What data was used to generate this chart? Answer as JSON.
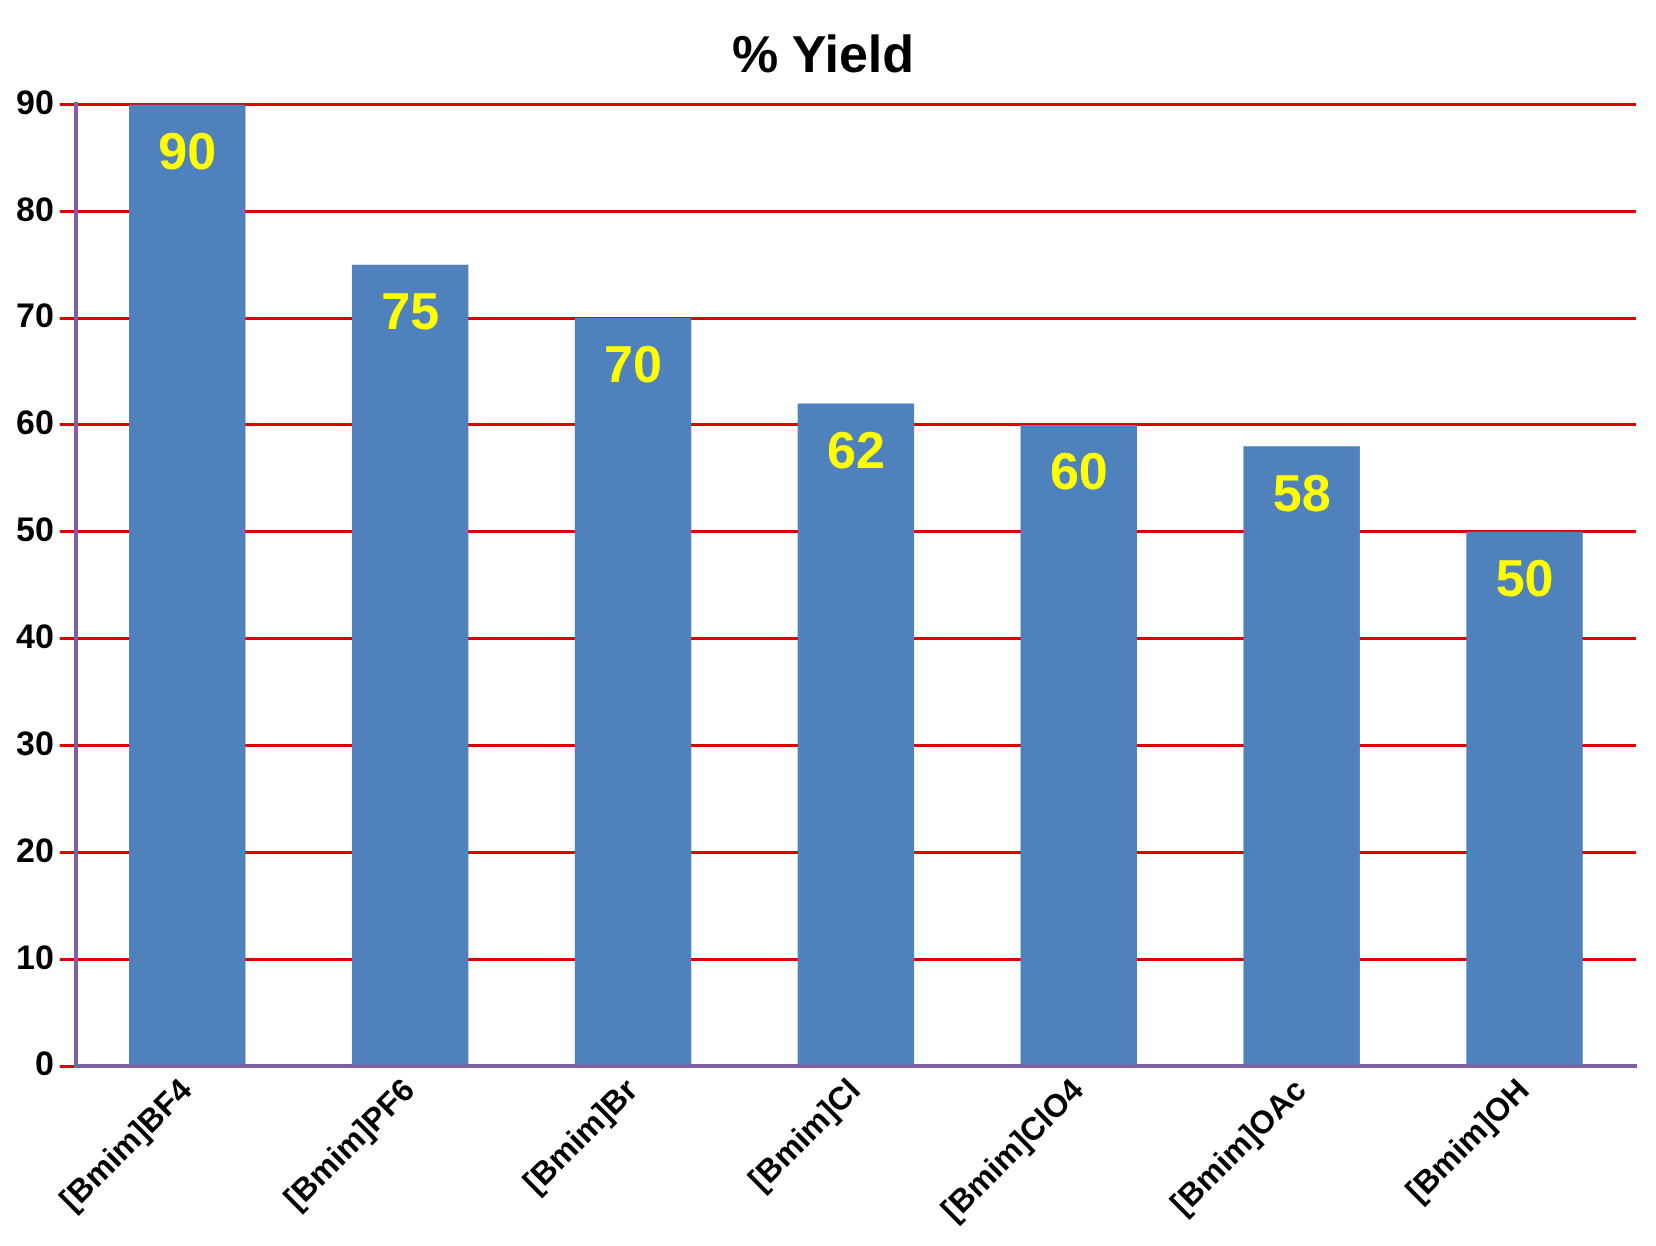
{
  "chart_data": {
    "type": "bar",
    "title": "% Yield",
    "categories": [
      "[Bmim]BF4",
      "[Bmim]PF6",
      "[Bmim]Br",
      "[Bmim]Cl",
      "[Bmim]ClO4",
      "[Bmim]OAc",
      "[Bmim]OH"
    ],
    "values": [
      90,
      75,
      70,
      62,
      60,
      58,
      50
    ],
    "color": "#4f81bd",
    "ylim": [
      0,
      90
    ],
    "yticks": [
      0,
      10,
      20,
      30,
      40,
      50,
      60,
      70,
      80,
      90
    ],
    "grid": "y",
    "data_labels": true,
    "legend": false
  }
}
